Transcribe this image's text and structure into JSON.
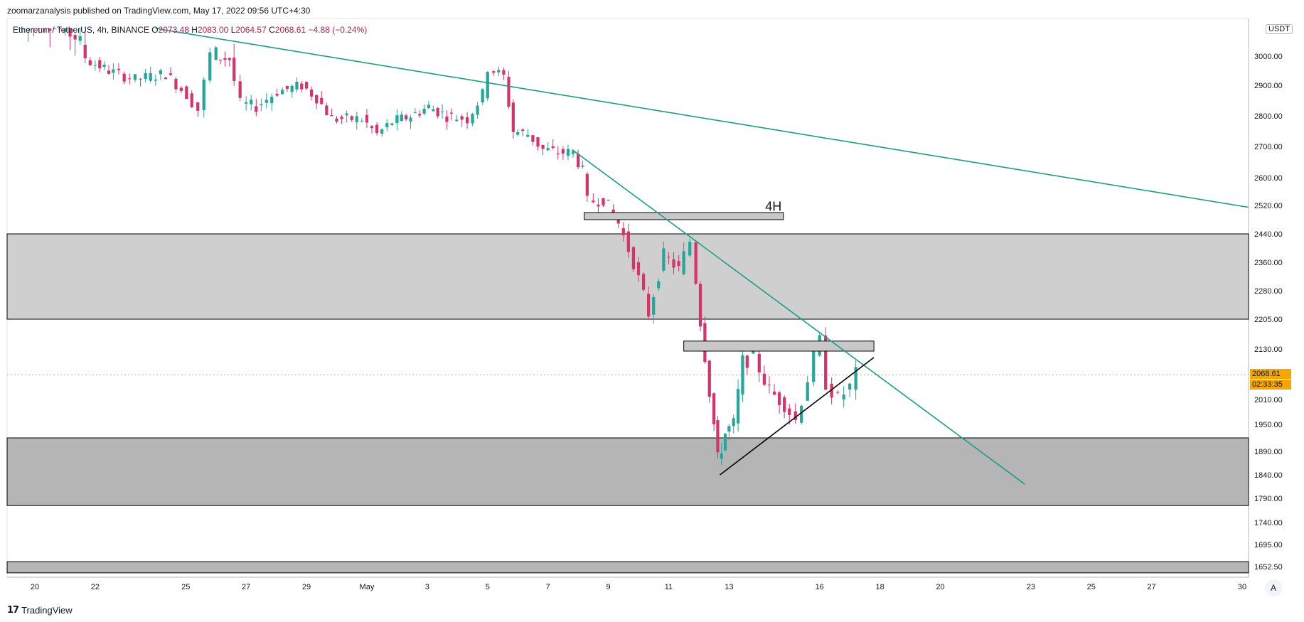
{
  "header": {
    "publisher_line": "zoomarzanalysis published on TradingView.com, May 17, 2022 09:56 UTC+4:30",
    "symbol_label": "Ethereum / TetherUS, 4h, BINANCE",
    "ohlc": {
      "open_label": "O",
      "open": "2073.48",
      "high_label": "H",
      "high": "2083.00",
      "low_label": "L",
      "low": "2064.57",
      "close_label": "C",
      "close": "2068.61",
      "change": "−4.88 (−0.24%)"
    },
    "currency": "USDT"
  },
  "footer": {
    "brand": "TradingView",
    "autoscale": "A"
  },
  "price_tag": {
    "price": "2068.61",
    "countdown": "02:33:35"
  },
  "colors": {
    "up": "#26a69a",
    "down": "#d6336c",
    "trendline": "#1a9e86",
    "zone": "#cfcfcf",
    "zone_dark": "#b5b5b5",
    "price_tag": "#f7a600"
  },
  "chart_data": {
    "type": "candlestick",
    "title": "Ethereum / TetherUS, 4h, BINANCE",
    "y_axis_ticks": [
      "3000.00",
      "2900.00",
      "2800.00",
      "2700.00",
      "2600.00",
      "2520.00",
      "2440.00",
      "2360.00",
      "2280.00",
      "2205.00",
      "2130.00",
      "2010.00",
      "1950.00",
      "1890.00",
      "1840.00",
      "1790.00",
      "1740.00",
      "1695.00",
      "1652.50"
    ],
    "x_axis_ticks": [
      {
        "label": "20",
        "day": 20
      },
      {
        "label": "22",
        "day": 22
      },
      {
        "label": "25",
        "day": 25
      },
      {
        "label": "27",
        "day": 27
      },
      {
        "label": "29",
        "day": 29
      },
      {
        "label": "May",
        "day": 31
      },
      {
        "label": "3",
        "day": 33
      },
      {
        "label": "5",
        "day": 35
      },
      {
        "label": "7",
        "day": 37
      },
      {
        "label": "9",
        "day": 39
      },
      {
        "label": "11",
        "day": 41
      },
      {
        "label": "13",
        "day": 43
      },
      {
        "label": "16",
        "day": 46
      },
      {
        "label": "18",
        "day": 48
      },
      {
        "label": "20",
        "day": 50
      },
      {
        "label": "23",
        "day": 53
      },
      {
        "label": "25",
        "day": 55
      },
      {
        "label": "27",
        "day": 57
      },
      {
        "label": "30",
        "day": 60
      }
    ],
    "candles_daily_path": [
      {
        "day": 19.6,
        "c": 3040
      },
      {
        "day": 20.5,
        "c": 3060
      },
      {
        "day": 21.5,
        "c": 3030
      },
      {
        "day": 22,
        "c": 2980
      },
      {
        "day": 22.6,
        "c": 2950
      },
      {
        "day": 23.5,
        "c": 2920
      },
      {
        "day": 24.5,
        "c": 2940
      },
      {
        "day": 25.2,
        "c": 2870
      },
      {
        "day": 25.6,
        "c": 2820
      },
      {
        "day": 26.0,
        "c": 3000
      },
      {
        "day": 26.6,
        "c": 2990
      },
      {
        "day": 27.0,
        "c": 2840
      },
      {
        "day": 27.5,
        "c": 2830
      },
      {
        "day": 28.2,
        "c": 2880
      },
      {
        "day": 29.0,
        "c": 2900
      },
      {
        "day": 29.5,
        "c": 2860
      },
      {
        "day": 30.0,
        "c": 2790
      },
      {
        "day": 31.0,
        "c": 2790
      },
      {
        "day": 31.5,
        "c": 2740
      },
      {
        "day": 32.0,
        "c": 2780
      },
      {
        "day": 32.6,
        "c": 2800
      },
      {
        "day": 33.2,
        "c": 2830
      },
      {
        "day": 33.8,
        "c": 2800
      },
      {
        "day": 34.5,
        "c": 2790
      },
      {
        "day": 35.0,
        "c": 2870
      },
      {
        "day": 35.2,
        "c": 2960
      },
      {
        "day": 35.7,
        "c": 2930
      },
      {
        "day": 36.0,
        "c": 2750
      },
      {
        "day": 36.5,
        "c": 2740
      },
      {
        "day": 37.0,
        "c": 2690
      },
      {
        "day": 37.5,
        "c": 2680
      },
      {
        "day": 38.0,
        "c": 2680
      },
      {
        "day": 38.3,
        "c": 2620
      },
      {
        "day": 38.5,
        "c": 2530
      },
      {
        "day": 39.0,
        "c": 2540
      },
      {
        "day": 39.5,
        "c": 2470
      },
      {
        "day": 40.0,
        "c": 2360
      },
      {
        "day": 40.5,
        "c": 2220
      },
      {
        "day": 41.0,
        "c": 2380
      },
      {
        "day": 41.5,
        "c": 2340
      },
      {
        "day": 41.9,
        "c": 2420
      },
      {
        "day": 42.2,
        "c": 2200
      },
      {
        "day": 42.5,
        "c": 2030
      },
      {
        "day": 42.75,
        "c": 1870
      },
      {
        "day": 43.0,
        "c": 1930
      },
      {
        "day": 43.3,
        "c": 1950
      },
      {
        "day": 43.6,
        "c": 2100
      },
      {
        "day": 44.0,
        "c": 2110
      },
      {
        "day": 44.5,
        "c": 2030
      },
      {
        "day": 45.0,
        "c": 2000
      },
      {
        "day": 45.4,
        "c": 1960
      },
      {
        "day": 45.8,
        "c": 2060
      },
      {
        "day": 46.0,
        "c": 2110
      },
      {
        "day": 46.2,
        "c": 2150
      },
      {
        "day": 46.4,
        "c": 2050
      },
      {
        "day": 46.8,
        "c": 2010
      },
      {
        "day": 47.2,
        "c": 2040
      },
      {
        "day": 47.4,
        "c": 2070
      }
    ],
    "zones": [
      {
        "name": "upper-demand-zone",
        "top": 2440,
        "bottom": 2205
      },
      {
        "name": "lower-demand-zone",
        "top": 1920,
        "bottom": 1775
      },
      {
        "name": "bottom-strip",
        "top": 1662,
        "bottom": 1640
      }
    ],
    "boxes": [
      {
        "name": "4h-resistance-box",
        "label": "4H",
        "x1": 38.2,
        "x2": 44.8,
        "top": 2500,
        "bottom": 2480
      },
      {
        "name": "mid-resistance-box",
        "label": "",
        "x1": 41.5,
        "x2": 47.8,
        "top": 2150,
        "bottom": 2125
      }
    ],
    "trendlines": [
      {
        "name": "long-downtrend-line",
        "x1": 24.0,
        "y1": 3085,
        "x2": 60.2,
        "y2": 2515
      },
      {
        "name": "short-downtrend-line",
        "x1": 37.8,
        "y1": 2690,
        "x2": 52.8,
        "y2": 1820
      },
      {
        "name": "ascending-support-line",
        "x1": 42.7,
        "y1": 1840,
        "x2": 47.8,
        "y2": 2110
      }
    ],
    "annotations": [
      {
        "text": "4H",
        "day": 44.2,
        "price": 2525
      }
    ],
    "current_price": 2068.61
  }
}
